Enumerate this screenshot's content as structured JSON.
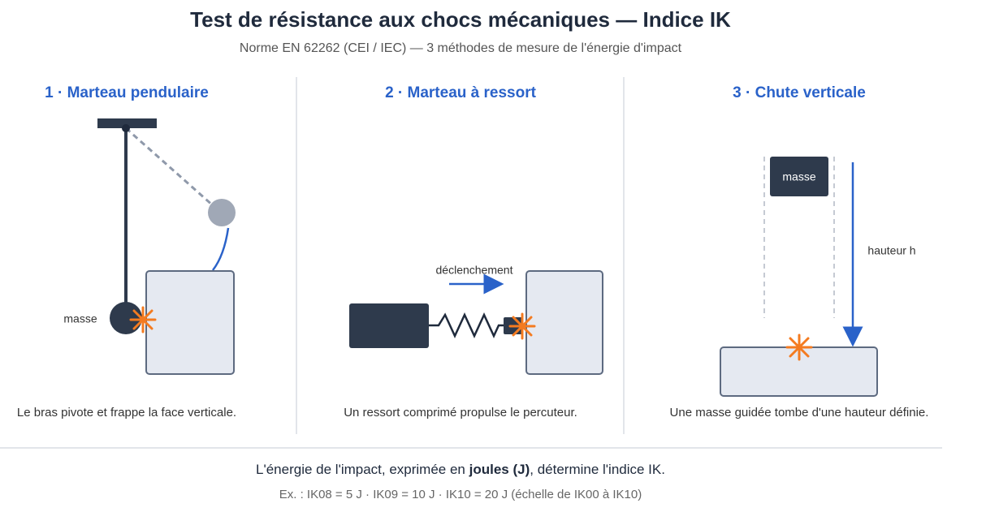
{
  "header": {
    "title": "Test de résistance aux chocs mécaniques — Indice IK",
    "subtitle": "Norme EN 62262 (CEI / IEC) — 3 méthodes de mesure de l'énergie d'impact"
  },
  "panels": [
    {
      "title": "1 · Marteau pendulaire",
      "labels": [
        "masse"
      ],
      "caption": "Le bras pivote et frappe la face verticale."
    },
    {
      "title": "2 · Marteau à ressort",
      "labels": [
        "déclenchement"
      ],
      "caption": "Un ressort comprimé propulse le percuteur."
    },
    {
      "title": "3 · Chute verticale",
      "labels": [
        "masse",
        "hauteur h"
      ],
      "caption": "Une masse guidée tombe d'une hauteur définie."
    }
  ],
  "footer": {
    "line1": [
      "L'énergie de l'impact, exprimée en ",
      "joules (J)",
      ", détermine l'indice IK."
    ],
    "line2": "Ex. : IK08 = 5 J · IK09 = 10 J · IK10 = 20 J (échelle de IK00 à IK10)"
  }
}
